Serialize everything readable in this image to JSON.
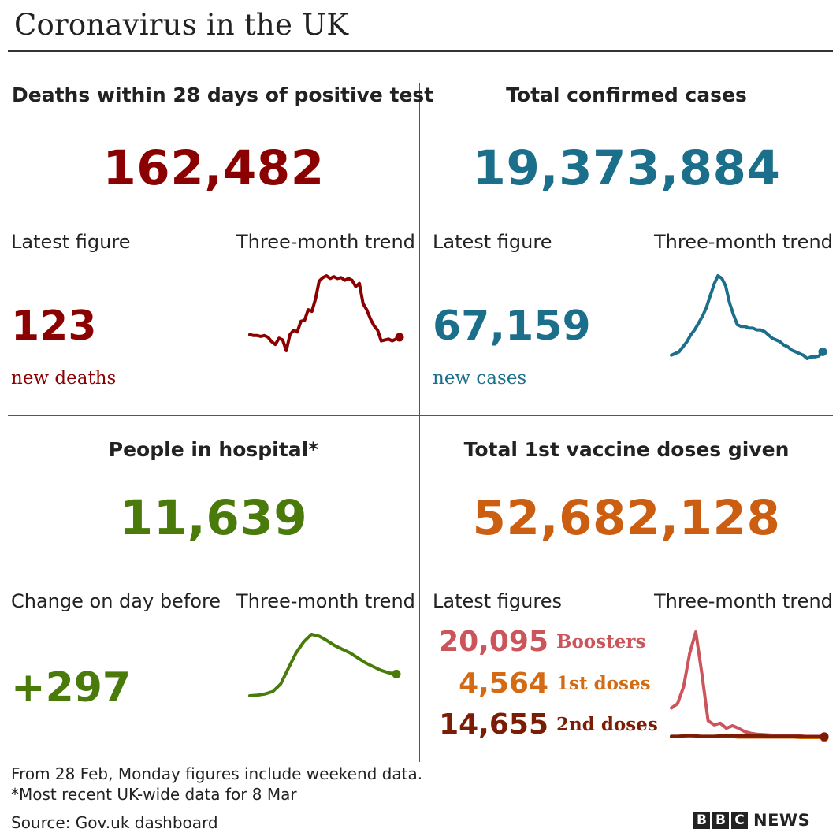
{
  "title": "Coronavirus in the UK",
  "colors": {
    "deaths": "#8b0000",
    "cases": "#1b6f8a",
    "hospital": "#4a7a0a",
    "vaccine": "#cc5e12",
    "boosters": "#cc545b",
    "first_doses": "#d36b14",
    "second_doses": "#7b1c05"
  },
  "deaths": {
    "heading": "Deaths within 28 days of positive test",
    "total": "162,482",
    "latest_label": "Latest figure",
    "trend_label": "Three-month trend",
    "latest_value": "123",
    "latest_unit": "new deaths"
  },
  "cases": {
    "heading": "Total confirmed cases",
    "total": "19,373,884",
    "latest_label": "Latest figure",
    "trend_label": "Three-month trend",
    "latest_value": "67,159",
    "latest_unit": "new cases"
  },
  "hospital": {
    "heading": "People in hospital*",
    "total": "11,639",
    "latest_label": "Change on day before",
    "trend_label": "Three-month trend",
    "latest_value": "+297"
  },
  "vaccine": {
    "heading": "Total 1st vaccine doses given",
    "total": "52,682,128",
    "latest_label": "Latest figures",
    "trend_label": "Three-month trend",
    "doses": [
      {
        "value": "20,095",
        "label": "Boosters"
      },
      {
        "value": "4,564",
        "label": "1st doses"
      },
      {
        "value": "14,655",
        "label": "2nd doses"
      }
    ]
  },
  "footer": {
    "note1": "From 28 Feb, Monday figures include weekend data.",
    "note2": "*Most recent UK-wide data for 8 Mar",
    "source": "Source: Gov.uk dashboard"
  },
  "logo": {
    "letters": [
      "B",
      "B",
      "C"
    ],
    "news": "NEWS"
  },
  "chart_data": [
    {
      "type": "line",
      "name": "deaths-trend",
      "series": [
        {
          "values": [
            140,
            138,
            138,
            136,
            138,
            134,
            124,
            118,
            132,
            128,
            104,
            140,
            150,
            146,
            170,
            172,
            196,
            192,
            220,
            260,
            268,
            272,
            266,
            270,
            266,
            268,
            262,
            266,
            262,
            248,
            255,
            210,
            196,
            176,
            160,
            150,
            126,
            128,
            130,
            126,
            130,
            134
          ]
        }
      ]
    },
    {
      "type": "line",
      "name": "cases-trend",
      "series": [
        {
          "values": [
            6,
            8,
            10,
            16,
            22,
            30,
            36,
            44,
            52,
            62,
            76,
            90,
            100,
            97,
            88,
            68,
            54,
            42,
            40,
            40,
            38,
            38,
            36,
            36,
            34,
            30,
            26,
            24,
            22,
            18,
            16,
            12,
            10,
            8,
            6,
            2,
            4,
            4,
            5,
            10
          ]
        }
      ]
    },
    {
      "type": "line",
      "name": "hospital-trend",
      "series": [
        {
          "values": [
            1,
            2,
            4,
            8,
            20,
            45,
            70,
            88,
            100,
            97,
            90,
            82,
            76,
            70,
            62,
            54,
            48,
            42,
            38,
            36
          ]
        }
      ]
    },
    {
      "type": "line",
      "name": "vaccine-trend",
      "series": [
        {
          "name": "Boosters",
          "values": [
            70,
            80,
            120,
            200,
            250,
            150,
            40,
            30,
            34,
            22,
            28,
            22,
            14,
            10,
            8,
            7,
            6,
            5,
            5,
            4,
            4,
            4,
            3,
            3,
            3,
            2
          ]
        },
        {
          "name": "1st doses",
          "values": [
            2,
            2,
            3,
            3,
            2,
            2,
            2,
            2,
            2,
            2,
            2,
            1,
            1,
            1,
            1,
            1,
            1,
            1,
            1,
            1,
            1,
            0,
            0,
            0,
            0,
            0
          ]
        },
        {
          "name": "2nd doses",
          "values": [
            3,
            3,
            4,
            5,
            4,
            3,
            3,
            3,
            4,
            4,
            4,
            4,
            4,
            4,
            4,
            4,
            3,
            3,
            3,
            3,
            3,
            3,
            2,
            2,
            2,
            2
          ]
        }
      ]
    }
  ]
}
